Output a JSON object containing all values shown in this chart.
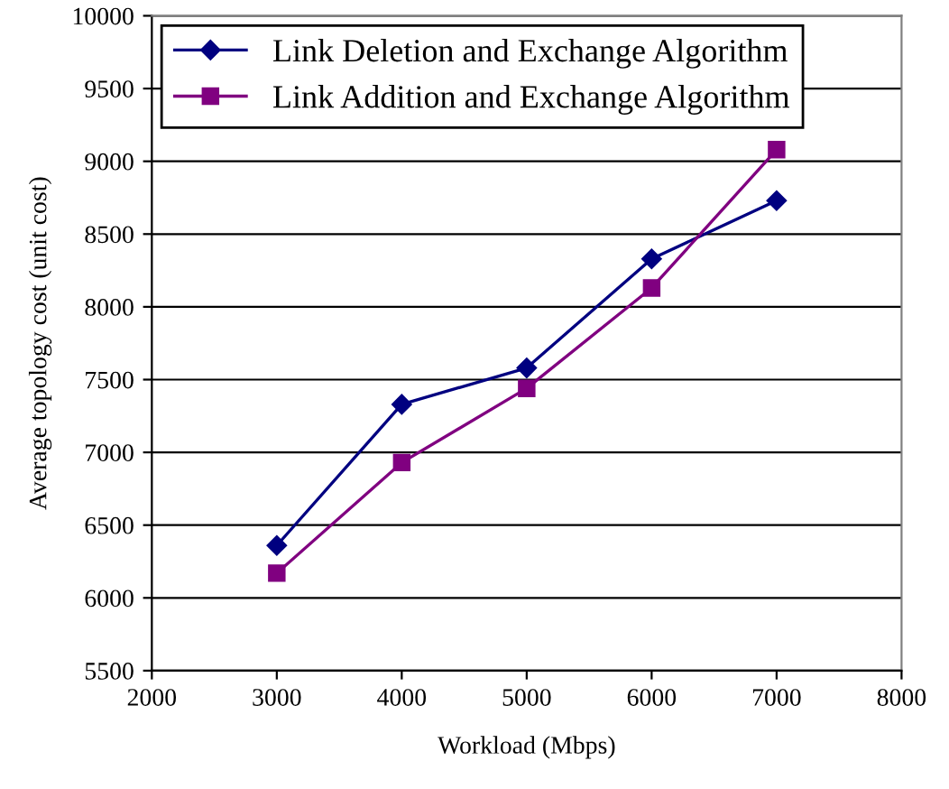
{
  "chart_data": {
    "type": "line",
    "xlabel": "Workload (Mbps)",
    "ylabel": "Average topology cost (unit cost)",
    "x": [
      3000,
      4000,
      5000,
      6000,
      7000
    ],
    "series": [
      {
        "name": "Link Deletion and Exchange Algorithm",
        "color": "#000080",
        "marker": "diamond",
        "values": [
          6360,
          7330,
          7580,
          8330,
          8730
        ]
      },
      {
        "name": "Link Addition and Exchange Algorithm",
        "color": "#800080",
        "marker": "square",
        "values": [
          6170,
          6930,
          7440,
          8130,
          9080
        ]
      }
    ],
    "xlim": [
      2000,
      8000
    ],
    "xticks": [
      2000,
      3000,
      4000,
      5000,
      6000,
      7000,
      8000
    ],
    "ylim": [
      5500,
      10000
    ],
    "yticks": [
      5500,
      6000,
      6500,
      7000,
      7500,
      8000,
      8500,
      9000,
      9500,
      10000
    ],
    "grid": "y",
    "legend": "top left",
    "line_style": "solid"
  }
}
